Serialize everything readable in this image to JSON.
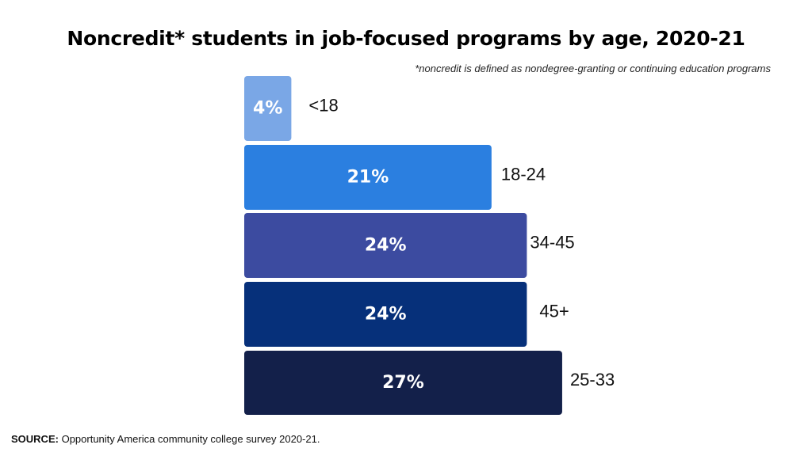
{
  "title": "Noncredit* students in job-focused programs by age, 2020-21",
  "footnote": "*noncredit is defined as nondegree-granting or continuing education programs",
  "source": {
    "label": "SOURCE:",
    "text": "Opportunity America community college survey 2020-21."
  },
  "chart_data": {
    "type": "bar",
    "orientation": "horizontal",
    "categories": [
      "<18",
      "18-24",
      "34-45",
      "45+",
      "25-33"
    ],
    "values": [
      4,
      21,
      24,
      24,
      27
    ],
    "value_labels": [
      "4%",
      "21%",
      "24%",
      "24%",
      "27%"
    ],
    "colors": [
      "#7aa7e6",
      "#2b7fe0",
      "#3c4ba0",
      "#06307a",
      "#13204a"
    ],
    "title": "Noncredit* students in job-focused programs by age, 2020-21",
    "xlabel": "",
    "ylabel": "",
    "grid": false,
    "legend": "none"
  }
}
